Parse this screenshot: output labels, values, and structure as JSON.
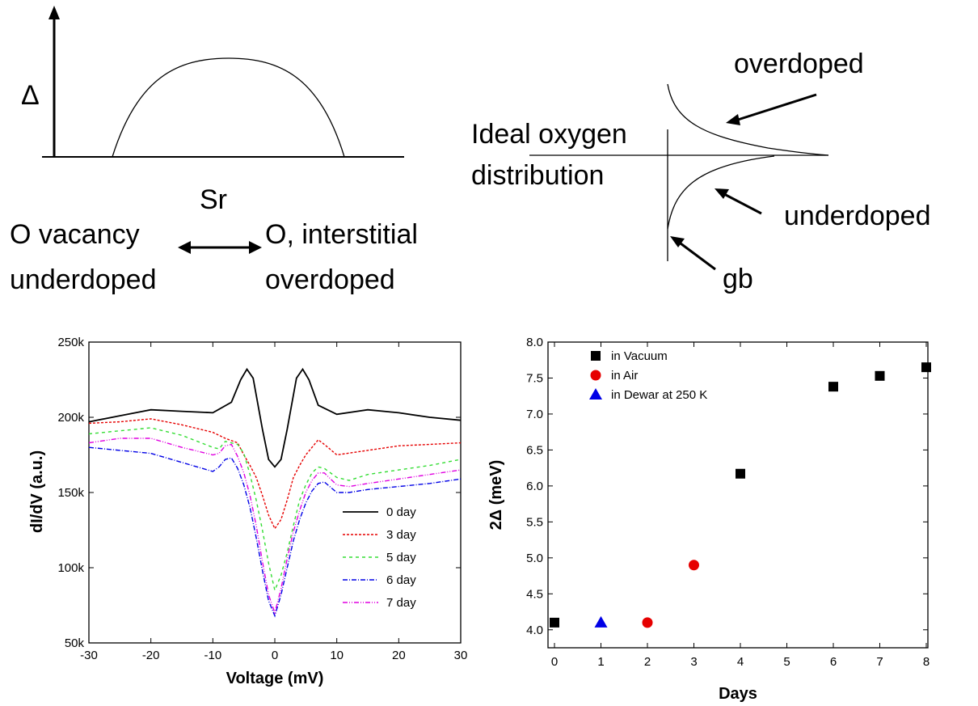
{
  "schematic": {
    "gap_symbol": "Δ",
    "dome_x_label": "Sr",
    "left_label_1": "O vacancy",
    "left_label_2": "underdoped",
    "right_label_1": "O, interstitial",
    "right_label_2": "overdoped",
    "dist_label_1": "Ideal oxygen",
    "dist_label_2": "distribution",
    "overdoped_label": "overdoped",
    "underdoped_label": "underdoped",
    "gb_label": "gb"
  },
  "chart_data": [
    {
      "type": "line",
      "xlabel": "Voltage (mV)",
      "ylabel": "dI/dV (a.u.)",
      "xlim": [
        -30,
        30
      ],
      "ylim": [
        50000,
        250000
      ],
      "x_ticks": [
        -30,
        -20,
        -10,
        0,
        10,
        20,
        30
      ],
      "y_ticks": [
        50000,
        100000,
        150000,
        200000,
        250000
      ],
      "x_tick_labels": [
        "-30",
        "-20",
        "-10",
        "0",
        "10",
        "20",
        "30"
      ],
      "y_tick_labels": [
        "50k",
        "100k",
        "150k",
        "200k",
        "250k"
      ],
      "legend_position": "lower-right",
      "series": [
        {
          "name": "0 day",
          "color": "#000000",
          "dash": "solid",
          "x": [
            -30,
            -25,
            -20,
            -15,
            -10,
            -7,
            -5.5,
            -4.5,
            -3.5,
            -2,
            -1,
            0,
            1,
            2,
            3.5,
            4.5,
            5.5,
            7,
            10,
            15,
            20,
            25,
            30
          ],
          "y": [
            197000,
            201000,
            205000,
            204000,
            203000,
            210000,
            225000,
            232000,
            226000,
            192000,
            172000,
            167000,
            172000,
            192000,
            226000,
            232000,
            225000,
            208000,
            202000,
            205000,
            203000,
            200000,
            198000
          ]
        },
        {
          "name": "3 day",
          "color": "#e60000",
          "dash": "3,2",
          "x": [
            -30,
            -25,
            -20,
            -15,
            -10,
            -8,
            -6,
            -5,
            -4,
            -3,
            -2,
            -1,
            0,
            1,
            2,
            3,
            4,
            5,
            6,
            7,
            8,
            10,
            15,
            20,
            25,
            30
          ],
          "y": [
            196000,
            197000,
            199000,
            195000,
            190000,
            186000,
            183000,
            175000,
            168000,
            160000,
            148000,
            135000,
            126000,
            132000,
            145000,
            160000,
            168000,
            175000,
            180000,
            185000,
            182000,
            175000,
            178000,
            181000,
            182000,
            183000
          ]
        },
        {
          "name": "5 day",
          "color": "#33dd33",
          "dash": "4,4",
          "x": [
            -30,
            -25,
            -20,
            -15,
            -10,
            -9,
            -8,
            -6,
            -5,
            -4,
            -3,
            -2,
            -1,
            0,
            1,
            2,
            3,
            4,
            5,
            6,
            7,
            8,
            10,
            12,
            15,
            20,
            25,
            30
          ],
          "y": [
            189000,
            191000,
            193000,
            188000,
            180000,
            179000,
            184000,
            182000,
            176000,
            162000,
            145000,
            125000,
            103000,
            85000,
            95000,
            110000,
            128000,
            145000,
            155000,
            163000,
            167000,
            166000,
            160000,
            158000,
            162000,
            165000,
            168000,
            172000
          ]
        },
        {
          "name": "6 day",
          "color": "#0000e6",
          "dash": "6,2,1,2",
          "x": [
            -30,
            -25,
            -20,
            -15,
            -10,
            -9,
            -8,
            -7,
            -6,
            -5,
            -4,
            -3,
            -2,
            -1,
            0,
            1,
            2,
            3,
            4,
            5,
            6,
            7,
            8,
            10,
            12,
            15,
            20,
            25,
            30
          ],
          "y": [
            180000,
            178000,
            176000,
            170000,
            164000,
            167000,
            172000,
            173000,
            166000,
            155000,
            140000,
            120000,
            98000,
            78000,
            68000,
            82000,
            100000,
            118000,
            132000,
            143000,
            151000,
            156000,
            157000,
            150000,
            150000,
            152000,
            154000,
            156000,
            159000
          ]
        },
        {
          "name": "7 day",
          "color": "#e000e0",
          "dash": "6,2,1,2,1,2",
          "x": [
            -30,
            -25,
            -20,
            -15,
            -10,
            -9,
            -8,
            -7,
            -6,
            -5,
            -4,
            -3,
            -2,
            -1,
            0,
            1,
            2,
            3,
            4,
            5,
            6,
            7,
            8,
            10,
            12,
            15,
            20,
            25,
            30
          ],
          "y": [
            183000,
            186000,
            186000,
            180000,
            175000,
            176000,
            181000,
            182000,
            174000,
            163000,
            148000,
            128000,
            104000,
            82000,
            70000,
            86000,
            106000,
            124000,
            138000,
            150000,
            158000,
            163000,
            163000,
            155000,
            154000,
            156000,
            159000,
            162000,
            165000
          ]
        }
      ]
    },
    {
      "type": "scatter",
      "xlabel": "Days",
      "ylabel": "2Δ (meV)",
      "xlim": [
        0,
        8
      ],
      "ylim": [
        3.75,
        8.0
      ],
      "x_ticks": [
        0,
        1,
        2,
        3,
        4,
        5,
        6,
        7,
        8
      ],
      "y_ticks": [
        4.0,
        4.5,
        5.0,
        5.5,
        6.0,
        6.5,
        7.0,
        7.5,
        8.0
      ],
      "x_tick_labels": [
        "0",
        "1",
        "2",
        "3",
        "4",
        "5",
        "6",
        "7",
        "8"
      ],
      "y_tick_labels": [
        "4.0",
        "4.5",
        "5.0",
        "5.5",
        "6.0",
        "6.5",
        "7.0",
        "7.5",
        "8.0"
      ],
      "legend_position": "top-left",
      "series": [
        {
          "name": "in Vacuum",
          "color": "#000000",
          "marker": "square",
          "x": [
            0,
            4,
            6,
            7,
            8
          ],
          "y": [
            4.1,
            6.17,
            7.38,
            7.53,
            7.65
          ]
        },
        {
          "name": "in Air",
          "color": "#e60000",
          "marker": "circle",
          "x": [
            2,
            3
          ],
          "y": [
            4.1,
            4.9
          ]
        },
        {
          "name": "in Dewar at 250 K",
          "color": "#0000e6",
          "marker": "triangle",
          "x": [
            1
          ],
          "y": [
            4.1
          ]
        }
      ]
    }
  ]
}
